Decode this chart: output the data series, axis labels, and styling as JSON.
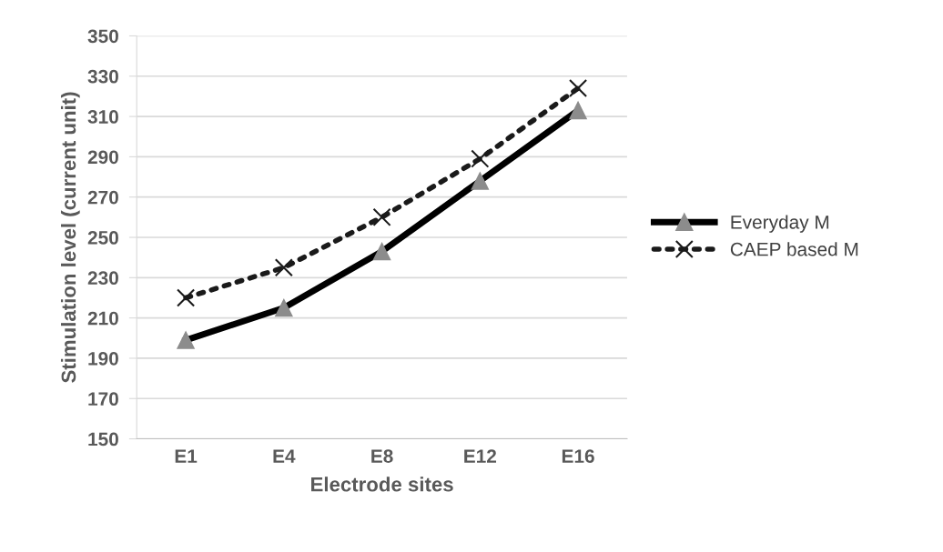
{
  "chart_data": {
    "type": "line",
    "xlabel": "Electrode sites",
    "ylabel": "Stimulation level (current unit)",
    "categories": [
      "E1",
      "E4",
      "E8",
      "E12",
      "E16"
    ],
    "series": [
      {
        "name": "Everyday M",
        "color": "#000000",
        "values": [
          199,
          215,
          243,
          278,
          313
        ],
        "marker": "triangle",
        "line_style": "solid"
      },
      {
        "name": "CAEP based M",
        "color": "#1a1a1a",
        "values": [
          220,
          235,
          260,
          289,
          324
        ],
        "marker": "cross",
        "line_style": "dotted"
      }
    ],
    "ylim": [
      150,
      350
    ],
    "yticks": [
      150,
      170,
      190,
      210,
      230,
      250,
      270,
      290,
      310,
      330,
      350
    ],
    "grid": "y",
    "legend": "right"
  }
}
